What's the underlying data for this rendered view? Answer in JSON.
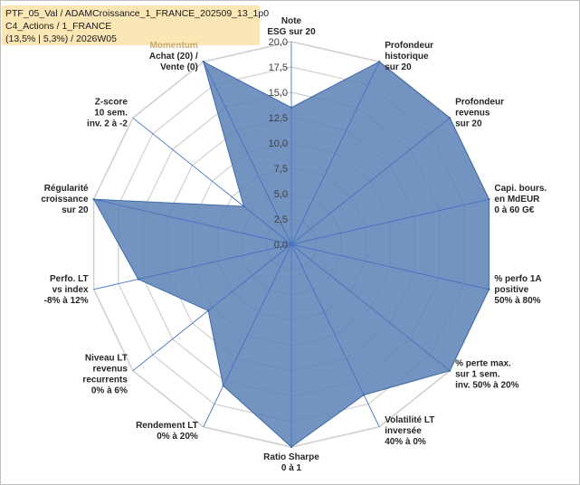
{
  "chart_data": {
    "type": "radar",
    "title_lines": [
      "PTF_05_Val / ADAMCroissance_1_FRANCE_202509_13_1p0",
      "C4_Actions / 1_FRANCE",
      "(13,5% | 5,3%) / 2026W05"
    ],
    "rmax": 20,
    "ticks": [
      "0,0",
      "2,5",
      "5,0",
      "7,5",
      "10,0",
      "12,5",
      "15,0",
      "17,5",
      "20,0"
    ],
    "axes": [
      {
        "label": [
          "Note",
          "ESG sur 20"
        ],
        "value": 13.5
      },
      {
        "label": [
          "Profondeur",
          "historique",
          "sur 20"
        ],
        "value": 20
      },
      {
        "label": [
          "Profondeur",
          "revenus",
          "sur 20"
        ],
        "value": 20
      },
      {
        "label": [
          "Capi. bours.",
          "en MdEUR",
          "0 à 60 G€"
        ],
        "value": 20
      },
      {
        "label": [
          "% perfo 1A",
          "positive",
          "50% à 80%"
        ],
        "value": 20
      },
      {
        "label": [
          "% perte max.",
          "sur 1 sem.",
          "inv. 50% à 20%"
        ],
        "value": 20
      },
      {
        "label": [
          "Volatilité LT",
          "inversée",
          "40% à 0%"
        ],
        "value": 16.5
      },
      {
        "label": [
          "Ratio Sharpe",
          "0 à 1"
        ],
        "value": 20
      },
      {
        "label": [
          "Rendement LT",
          "0% à 20%"
        ],
        "value": 15.5
      },
      {
        "label": [
          "Niveau LT",
          "revenus",
          "recurrents",
          "0% à 6%"
        ],
        "value": 10.5
      },
      {
        "label": [
          "Perfo. LT",
          "vs index",
          "-8% à 12%"
        ],
        "value": 15.5
      },
      {
        "label": [
          "Régularité",
          "croissance",
          "sur 20"
        ],
        "value": 20
      },
      {
        "label": [
          "Z-score",
          "10 sem.",
          "inv. 2 à -2"
        ],
        "value": 6.0
      },
      {
        "label": [
          "Momentum",
          "Achat (20) /",
          "Vente (0)"
        ],
        "value": 20
      }
    ],
    "colors": {
      "fill": "#5a80b5",
      "stroke": "#3f6aa8",
      "grid": "#d0d0d0",
      "spoke": "#4472c4",
      "title_bg": "#fbe7b6"
    }
  }
}
